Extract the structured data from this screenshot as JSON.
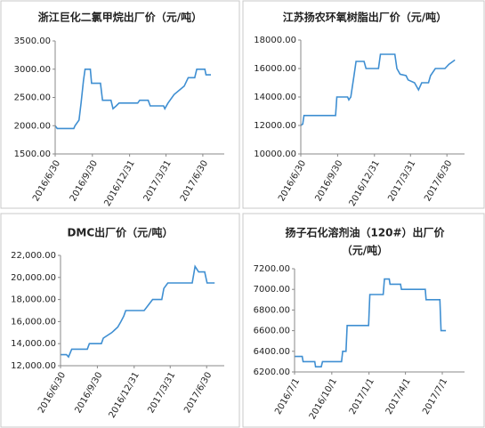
{
  "chart_data": [
    {
      "type": "line",
      "title": "浙江巨化二氯甲烷出厂价（元/吨）",
      "xlim": [
        "2016/6/30",
        "2017/8/22"
      ],
      "xticks": [
        "2016/6/30",
        "2016/9/30",
        "2016/12/31",
        "2017/3/31",
        "2017/6/30"
      ],
      "ylim": [
        1500,
        3500
      ],
      "yticks": [
        {
          "value": 1500,
          "label": "1500.00"
        },
        {
          "value": 2000,
          "label": "2000.00"
        },
        {
          "value": 2500,
          "label": "2500.00"
        },
        {
          "value": 3000,
          "label": "3000.00"
        },
        {
          "value": 3500,
          "label": "3500.00"
        }
      ],
      "x": [
        "2016/6/30",
        "2016/7/5",
        "2016/8/15",
        "2016/8/18",
        "2016/8/28",
        "2016/9/2",
        "2016/9/8",
        "2016/9/12",
        "2016/9/25",
        "2016/9/28",
        "2016/10/20",
        "2016/10/25",
        "2016/11/15",
        "2016/11/20",
        "2016/11/28",
        "2016/12/5",
        "2017/1/20",
        "2017/1/25",
        "2017/2/15",
        "2017/2/20",
        "2017/3/25",
        "2017/3/28",
        "2017/4/5",
        "2017/4/20",
        "2017/5/15",
        "2017/5/25",
        "2017/6/10",
        "2017/6/15",
        "2017/7/5",
        "2017/7/8",
        "2017/7/20"
      ],
      "series": [
        {
          "color": "#3f8fd2",
          "values": [
            2000,
            1950,
            1950,
            2000,
            2100,
            2400,
            2800,
            3000,
            3000,
            2750,
            2750,
            2450,
            2450,
            2300,
            2350,
            2400,
            2400,
            2450,
            2450,
            2350,
            2350,
            2300,
            2400,
            2550,
            2700,
            2850,
            2850,
            3000,
            3000,
            2900,
            2900
          ]
        }
      ]
    },
    {
      "type": "line",
      "title": "江苏扬农环氧树脂出厂价（元/吨）",
      "xlim": [
        "2016/6/30",
        "2017/8/13"
      ],
      "xticks": [
        "2016/6/30",
        "2016/9/30",
        "2016/12/31",
        "2017/3/31",
        "2017/6/30"
      ],
      "ylim": [
        10000,
        18000
      ],
      "yticks": [
        {
          "value": 10000,
          "label": "10000.00"
        },
        {
          "value": 12000,
          "label": "12000.00"
        },
        {
          "value": 14000,
          "label": "14000.00"
        },
        {
          "value": 16000,
          "label": "16000.00"
        },
        {
          "value": 18000,
          "label": "18000.00"
        }
      ],
      "x": [
        "2016/6/30",
        "2016/7/5",
        "2016/7/8",
        "2016/9/25",
        "2016/9/28",
        "2016/10/25",
        "2016/10/28",
        "2016/11/2",
        "2016/11/10",
        "2016/11/15",
        "2016/12/5",
        "2016/12/10",
        "2017/1/10",
        "2017/1/15",
        "2017/2/20",
        "2017/2/25",
        "2017/3/5",
        "2017/3/20",
        "2017/3/25",
        "2017/4/10",
        "2017/4/20",
        "2017/4/28",
        "2017/5/15",
        "2017/5/20",
        "2017/6/1",
        "2017/6/25",
        "2017/7/5",
        "2017/7/15",
        "2017/7/20"
      ],
      "series": [
        {
          "color": "#3f8fd2",
          "values": [
            12000,
            12100,
            12700,
            12700,
            14000,
            14000,
            13800,
            14000,
            15500,
            16500,
            16500,
            16000,
            16000,
            17000,
            17000,
            16000,
            15600,
            15500,
            15200,
            15000,
            14500,
            15000,
            15000,
            15500,
            16000,
            16000,
            16300,
            16500,
            16600
          ]
        }
      ]
    },
    {
      "type": "line",
      "title": "DMC出厂价（元/吨）",
      "xlim": [
        "2016/6/30",
        "2017/8/13"
      ],
      "xticks": [
        "2016/6/30",
        "2016/9/30",
        "2016/12/31",
        "2017/3/31",
        "2017/6/30"
      ],
      "ylim": [
        12000,
        22000
      ],
      "yticks": [
        {
          "value": 12000,
          "label": "12,000.00"
        },
        {
          "value": 14000,
          "label": "14,000.00"
        },
        {
          "value": 16000,
          "label": "16,000.00"
        },
        {
          "value": 18000,
          "label": "18,000.00"
        },
        {
          "value": 20000,
          "label": "20,000.00"
        },
        {
          "value": 22000,
          "label": "22,000.00"
        }
      ],
      "x": [
        "2016/6/30",
        "2016/7/15",
        "2016/7/20",
        "2016/7/28",
        "2016/9/5",
        "2016/9/10",
        "2016/10/10",
        "2016/10/15",
        "2016/11/5",
        "2016/11/20",
        "2016/11/28",
        "2016/12/5",
        "2016/12/10",
        "2017/1/25",
        "2017/2/15",
        "2017/3/10",
        "2017/3/15",
        "2017/3/25",
        "2017/5/25",
        "2017/6/1",
        "2017/6/10",
        "2017/6/25",
        "2017/7/1",
        "2017/7/20"
      ],
      "series": [
        {
          "color": "#3f8fd2",
          "values": [
            13000,
            13000,
            12800,
            13500,
            13500,
            14000,
            14000,
            14500,
            15000,
            15500,
            16000,
            16500,
            17000,
            17000,
            18000,
            18000,
            19000,
            19500,
            19500,
            21000,
            20500,
            20500,
            19500,
            19500
          ]
        }
      ]
    },
    {
      "type": "line",
      "title": [
        "扬子石化溶剂油（120#）出厂价",
        "（元/吨）"
      ],
      "xlim": [
        "2016/7/1",
        "2017/8/25"
      ],
      "xticks": [
        "2016/7/1",
        "2016/10/1",
        "2017/1/1",
        "2017/4/1",
        "2017/7/1"
      ],
      "ylim": [
        6200,
        7200
      ],
      "yticks": [
        {
          "value": 6200,
          "label": "6200.00"
        },
        {
          "value": 6400,
          "label": "6400.00"
        },
        {
          "value": 6600,
          "label": "6600.00"
        },
        {
          "value": 6800,
          "label": "6800.00"
        },
        {
          "value": 7000,
          "label": "7000.00"
        },
        {
          "value": 7200,
          "label": "7200.00"
        }
      ],
      "x": [
        "2016/7/1",
        "2016/7/20",
        "2016/7/22",
        "2016/8/20",
        "2016/8/22",
        "2016/9/5",
        "2016/9/8",
        "2016/10/25",
        "2016/10/28",
        "2016/11/5",
        "2016/11/8",
        "2016/12/31",
        "2017/1/3",
        "2017/2/5",
        "2017/2/8",
        "2017/2/20",
        "2017/2/22",
        "2017/3/20",
        "2017/3/22",
        "2017/5/20",
        "2017/5/22",
        "2017/6/25",
        "2017/6/28",
        "2017/7/10"
      ],
      "series": [
        {
          "color": "#3f8fd2",
          "values": [
            6350,
            6350,
            6300,
            6300,
            6250,
            6250,
            6300,
            6300,
            6400,
            6400,
            6650,
            6650,
            6950,
            6950,
            7100,
            7100,
            7050,
            7050,
            7000,
            7000,
            6900,
            6900,
            6600,
            6600
          ]
        }
      ]
    }
  ]
}
